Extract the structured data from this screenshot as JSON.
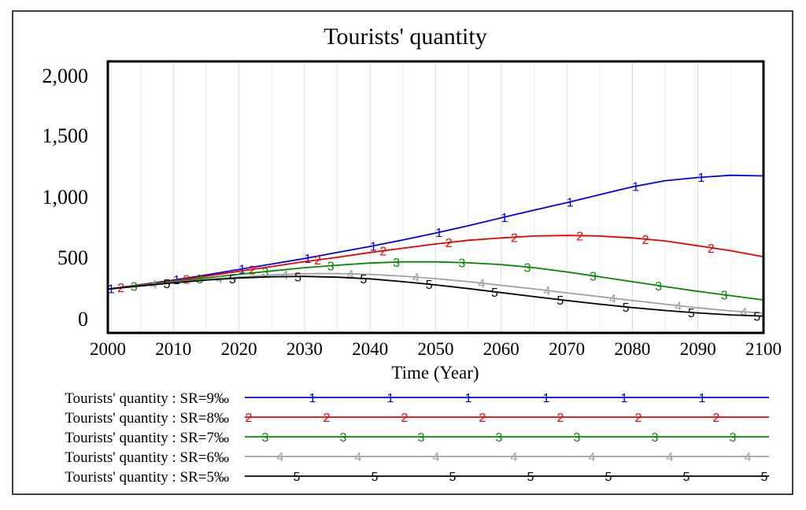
{
  "chart_data": {
    "type": "line",
    "title": "Tourists' quantity",
    "xlabel": "Time (Year)",
    "ylabel": "",
    "xlim": [
      2000,
      2100
    ],
    "ylim": [
      0,
      2000
    ],
    "x_ticks": [
      "2000",
      "2010",
      "2020",
      "2030",
      "2040",
      "2050",
      "2060",
      "2070",
      "2080",
      "2090",
      "2100"
    ],
    "y_ticks": [
      "2,000",
      "1,500",
      "1,000",
      "500",
      "0"
    ],
    "grid": true,
    "legend_position": "bottom",
    "series": [
      {
        "name": "Tourists' quantity : SR=9‰",
        "marker": "1",
        "color": "#0000ee",
        "x": [
          2000,
          2005,
          2010,
          2015,
          2020,
          2025,
          2030,
          2035,
          2040,
          2045,
          2050,
          2055,
          2060,
          2065,
          2070,
          2075,
          2080,
          2085,
          2090,
          2095,
          2100
        ],
        "y": [
          244,
          280,
          318,
          360,
          405,
          450,
          495,
          545,
          595,
          648,
          705,
          765,
          830,
          893,
          955,
          1020,
          1085,
          1135,
          1162,
          1180,
          1175
        ]
      },
      {
        "name": "Tourists' quantity : SR=8‰",
        "marker": "2",
        "color": "#ee0000",
        "x": [
          2000,
          2005,
          2010,
          2015,
          2020,
          2025,
          2030,
          2035,
          2040,
          2045,
          2050,
          2055,
          2060,
          2065,
          2070,
          2075,
          2080,
          2085,
          2090,
          2095,
          2100
        ],
        "y": [
          244,
          278,
          312,
          350,
          390,
          430,
          470,
          505,
          545,
          580,
          615,
          645,
          665,
          680,
          685,
          680,
          665,
          640,
          600,
          560,
          510
        ]
      },
      {
        "name": "Tourists' quantity : SR=7‰",
        "marker": "3",
        "color": "#008800",
        "x": [
          2000,
          2005,
          2010,
          2015,
          2020,
          2025,
          2030,
          2035,
          2040,
          2045,
          2050,
          2055,
          2060,
          2065,
          2070,
          2075,
          2080,
          2085,
          2090,
          2095,
          2100
        ],
        "y": [
          244,
          275,
          306,
          336,
          366,
          393,
          420,
          440,
          458,
          468,
          468,
          460,
          445,
          420,
          385,
          345,
          305,
          265,
          225,
          190,
          155
        ]
      },
      {
        "name": "Tourists' quantity : SR=6‰",
        "marker": "4",
        "color": "#a0a0a0",
        "x": [
          2000,
          2005,
          2010,
          2015,
          2020,
          2025,
          2030,
          2035,
          2040,
          2045,
          2050,
          2055,
          2060,
          2065,
          2070,
          2075,
          2080,
          2085,
          2090,
          2095,
          2100
        ],
        "y": [
          244,
          272,
          300,
          323,
          343,
          360,
          370,
          372,
          365,
          350,
          330,
          305,
          275,
          245,
          213,
          182,
          150,
          120,
          90,
          65,
          45
        ]
      },
      {
        "name": "Tourists' quantity : SR=5‰",
        "marker": "5",
        "color": "#000000",
        "x": [
          2000,
          2005,
          2010,
          2015,
          2020,
          2025,
          2030,
          2035,
          2040,
          2045,
          2050,
          2055,
          2060,
          2065,
          2070,
          2075,
          2080,
          2085,
          2090,
          2095,
          2100
        ],
        "y": [
          244,
          270,
          296,
          318,
          335,
          345,
          348,
          342,
          328,
          305,
          278,
          248,
          215,
          182,
          150,
          120,
          92,
          68,
          48,
          32,
          22
        ]
      }
    ]
  }
}
